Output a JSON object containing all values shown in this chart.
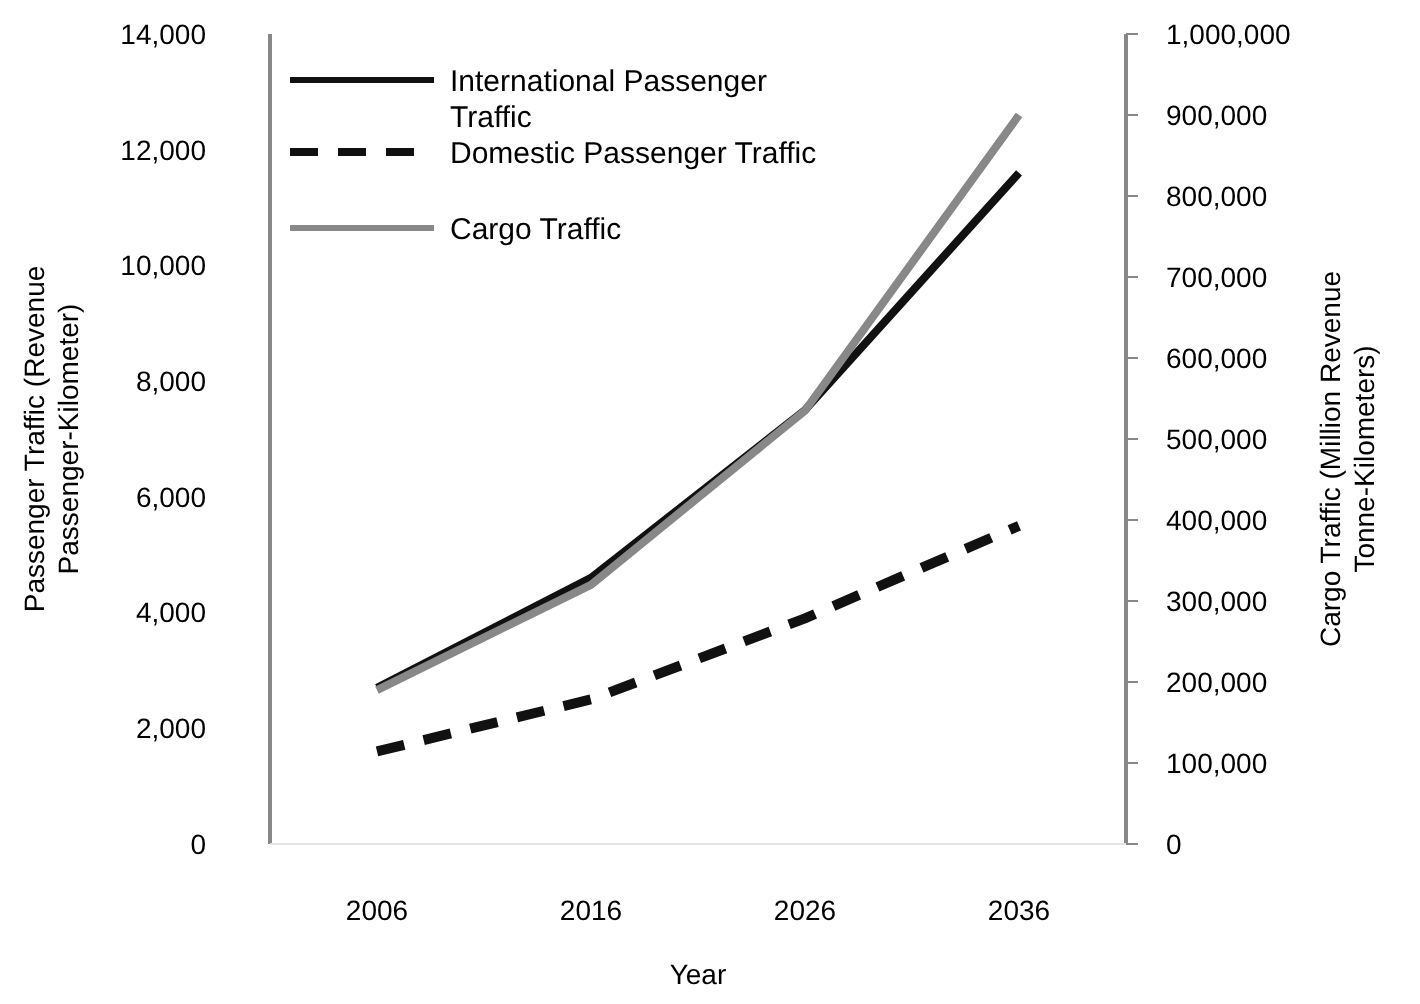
{
  "chart_data": {
    "type": "line",
    "categories": [
      "2006",
      "2016",
      "2026",
      "2036"
    ],
    "xlabel": "Year",
    "ylabel": "Passenger Traffic (Revenue Passenger-Kilometer)",
    "y2label": "Cargo Traffic (Million Revenue Tonne-Kilometers)",
    "ylim": [
      0,
      14000
    ],
    "yticks": [
      {
        "value": 0,
        "label": "0"
      },
      {
        "value": 2000,
        "label": "2,000"
      },
      {
        "value": 4000,
        "label": "4,000"
      },
      {
        "value": 6000,
        "label": "6,000"
      },
      {
        "value": 8000,
        "label": "8,000"
      },
      {
        "value": 10000,
        "label": "10,000"
      },
      {
        "value": 12000,
        "label": "12,000"
      },
      {
        "value": 14000,
        "label": "14,000"
      }
    ],
    "y2lim": [
      0,
      1000000
    ],
    "y2ticks": [
      {
        "value": 0,
        "label": "0"
      },
      {
        "value": 100000,
        "label": "100,000"
      },
      {
        "value": 200000,
        "label": "200,000"
      },
      {
        "value": 300000,
        "label": "300,000"
      },
      {
        "value": 400000,
        "label": "400,000"
      },
      {
        "value": 500000,
        "label": "500,000"
      },
      {
        "value": 600000,
        "label": "600,000"
      },
      {
        "value": 700000,
        "label": "700,000"
      },
      {
        "value": 800000,
        "label": "800,000"
      },
      {
        "value": 900000,
        "label": "900,000"
      },
      {
        "value": 1000000,
        "label": "1,000,000"
      }
    ],
    "legend": "top left",
    "grid": false,
    "series": [
      {
        "name": "International Passenger Traffic",
        "color": "#111111",
        "line_style": "solid",
        "values": [
          2700,
          4600,
          7500,
          11600
        ]
      },
      {
        "name": "Domestic Passenger Traffic",
        "color": "#111111",
        "line_style": "dashed",
        "values": [
          1600,
          2500,
          3900,
          5500
        ]
      },
      {
        "name": "Cargo Traffic",
        "color": "#888888",
        "line_style": "solid",
        "axis": "y2",
        "values": [
          190000,
          320000,
          535000,
          900000
        ]
      }
    ]
  }
}
